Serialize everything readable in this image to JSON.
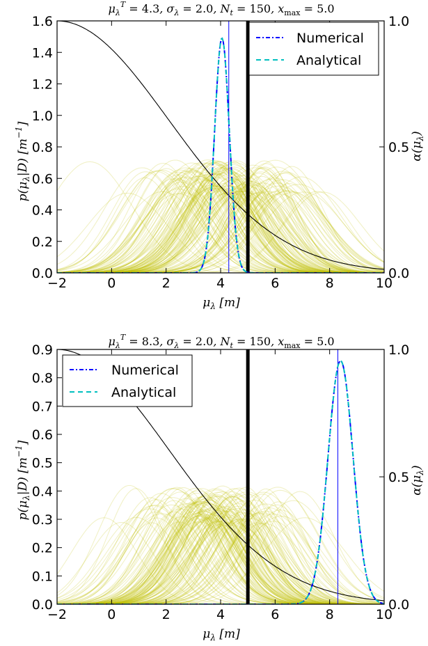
{
  "chart_data": [
    {
      "type": "line",
      "title": "μλT = 4.3, σλ = 2.0, Nt = 150, xmax = 5.0",
      "title_parts": {
        "mu_T": "4.3",
        "sigma": "2.0",
        "Nt": "150",
        "xmax": "5.0"
      },
      "xlabel": "μλ [m]",
      "ylabel": "p(μλ|D) [m⁻¹]",
      "ylabel_right": "α(μλ)",
      "xlim": [
        -2,
        10
      ],
      "ylim": [
        0,
        1.6
      ],
      "ylim_right": [
        0,
        1.0
      ],
      "xticks": [
        "−2",
        "0",
        "2",
        "4",
        "6",
        "8",
        "10"
      ],
      "yticks": [
        "0.0",
        "0.2",
        "0.4",
        "0.6",
        "0.8",
        "1.0",
        "1.2",
        "1.4",
        "1.6"
      ],
      "yticks_right": [
        "0.0",
        "0.5",
        "1.0"
      ],
      "legend_position": "top-right",
      "grid": false,
      "true_value": 4.3,
      "threshold": 5.0,
      "sigma": 2.0,
      "n_curves": 150,
      "series": [
        {
          "name": "Numerical",
          "peak_x": 4.05,
          "peak_y": 1.49,
          "width": 0.27,
          "color": "#0000ff",
          "style": "dash-dot"
        },
        {
          "name": "Analytical",
          "peak_x": 4.05,
          "peak_y": 1.49,
          "width": 0.27,
          "color": "#00bfbf",
          "style": "dashed"
        }
      ],
      "posterior_peak_range": [
        0.5,
        0.72
      ],
      "curve_color": "#bfbf00"
    },
    {
      "type": "line",
      "title": "μλT = 8.3, σλ = 2.0, Nt = 150, xmax = 5.0",
      "title_parts": {
        "mu_T": "8.3",
        "sigma": "2.0",
        "Nt": "150",
        "xmax": "5.0"
      },
      "xlabel": "μλ [m]",
      "ylabel": "p(μλ|D) [m⁻¹]",
      "ylabel_right": "α(μλ)",
      "xlim": [
        -2,
        10
      ],
      "ylim": [
        0,
        0.9
      ],
      "ylim_right": [
        0,
        1.0
      ],
      "xticks": [
        "−2",
        "0",
        "2",
        "4",
        "6",
        "8",
        "10"
      ],
      "yticks": [
        "0.0",
        "0.1",
        "0.2",
        "0.3",
        "0.4",
        "0.5",
        "0.6",
        "0.7",
        "0.8",
        "0.9"
      ],
      "yticks_right": [
        "0.0",
        "0.5",
        "1.0"
      ],
      "legend_position": "top-left",
      "grid": false,
      "true_value": 8.3,
      "threshold": 5.0,
      "sigma": 2.0,
      "n_curves": 150,
      "series": [
        {
          "name": "Numerical",
          "peak_x": 8.4,
          "peak_y": 0.86,
          "width": 0.46,
          "color": "#0000ff",
          "style": "dash-dot"
        },
        {
          "name": "Analytical",
          "peak_x": 8.4,
          "peak_y": 0.86,
          "width": 0.46,
          "color": "#00bfbf",
          "style": "dashed"
        }
      ],
      "posterior_peak_range": [
        0.28,
        0.42
      ],
      "curve_color": "#bfbf00"
    }
  ]
}
